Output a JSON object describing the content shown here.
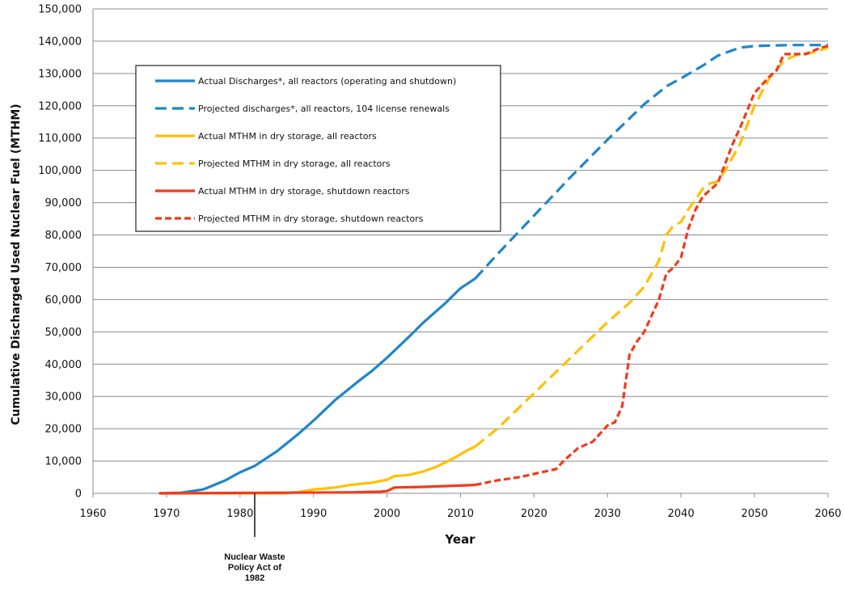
{
  "chart_data": {
    "type": "line",
    "title": "",
    "xlabel": "Year",
    "ylabel": "Cumulative Discharged Used Nuclear Fuel (MTHM)",
    "xlim": [
      1960,
      2060
    ],
    "ylim": [
      0,
      150000
    ],
    "x_ticks": [
      "1960",
      "1970",
      "1980",
      "1990",
      "2000",
      "2010",
      "2020",
      "2030",
      "2040",
      "2050",
      "2060"
    ],
    "y_ticks": [
      "0",
      "10,000",
      "20,000",
      "30,000",
      "40,000",
      "50,000",
      "60,000",
      "70,000",
      "80,000",
      "90,000",
      "100,000",
      "110,000",
      "120,000",
      "130,000",
      "140,000",
      "150,000"
    ],
    "grid": "horizontal",
    "legend_position": "upper-left",
    "annotation": {
      "x": 1982,
      "lines": [
        "Nuclear Waste",
        "Policy Act of",
        "1982"
      ]
    },
    "series": [
      {
        "name": "Actual Discharges*, all reactors (operating and shutdown)",
        "color": "#1f86c8",
        "style": "solid",
        "x": [
          1969,
          1972,
          1975,
          1978,
          1980,
          1982,
          1985,
          1988,
          1990,
          1993,
          1996,
          1998,
          2000,
          2003,
          2005,
          2008,
          2010,
          2012
        ],
        "y": [
          0,
          200,
          1200,
          4000,
          6500,
          8500,
          13000,
          18500,
          22500,
          29000,
          34500,
          38000,
          42000,
          48500,
          53000,
          59000,
          63500,
          66500
        ]
      },
      {
        "name": "Projected discharges*, all reactors, 104 license renewals",
        "color": "#1f86c8",
        "style": "dashed",
        "x": [
          2012,
          2015,
          2020,
          2025,
          2030,
          2035,
          2038,
          2040,
          2043,
          2045,
          2048,
          2050,
          2053,
          2055,
          2060
        ],
        "y": [
          66500,
          74000,
          86000,
          98000,
          109500,
          120500,
          126000,
          128500,
          132500,
          135500,
          138000,
          138500,
          138700,
          138800,
          138800
        ]
      },
      {
        "name": "Actual MTHM in dry storage, all reactors",
        "color": "#ffc000",
        "style": "solid",
        "x": [
          1969,
          1986,
          1988,
          1990,
          1993,
          1995,
          1998,
          2000,
          2001,
          2003,
          2005,
          2007,
          2009,
          2011,
          2012
        ],
        "y": [
          0,
          0,
          400,
          1200,
          1800,
          2600,
          3300,
          4200,
          5300,
          5700,
          6800,
          8500,
          10800,
          13400,
          14500
        ]
      },
      {
        "name": "Projected MTHM in dry storage, all reactors",
        "color": "#ffc000",
        "style": "dashed",
        "x": [
          2012,
          2015,
          2020,
          2025,
          2030,
          2033,
          2035,
          2037,
          2038,
          2039,
          2040,
          2041,
          2042,
          2043,
          2044,
          2045,
          2046,
          2048,
          2050,
          2052,
          2054,
          2056,
          2058,
          2060
        ],
        "y": [
          14500,
          20000,
          31000,
          42000,
          53000,
          59000,
          64000,
          72000,
          80000,
          83000,
          84000,
          88000,
          91000,
          94500,
          96000,
          96500,
          100000,
          108000,
          120000,
          128500,
          134000,
          136000,
          136500,
          138000
        ]
      },
      {
        "name": "Actual MTHM in dry storage, shutdown reactors",
        "color": "#f23a1d",
        "style": "solid",
        "x": [
          1969,
          1995,
          1999,
          2000,
          2001,
          2005,
          2010,
          2012
        ],
        "y": [
          0,
          300,
          500,
          700,
          1800,
          2000,
          2400,
          2600
        ]
      },
      {
        "name": "Projected MTHM in dry storage, shutdown reactors",
        "color": "#f23a1d",
        "style": "dashed",
        "x": [
          2012,
          2015,
          2018,
          2020,
          2023,
          2024,
          2026,
          2028,
          2030,
          2031,
          2032,
          2033,
          2034,
          2035,
          2036,
          2037,
          2038,
          2039,
          2040,
          2041,
          2042,
          2043,
          2044,
          2045,
          2046,
          2047,
          2048,
          2050,
          2052,
          2053,
          2054,
          2055,
          2056,
          2057,
          2058,
          2059,
          2060
        ],
        "y": [
          2600,
          4000,
          5000,
          6000,
          7500,
          10000,
          14000,
          16000,
          21000,
          22000,
          27000,
          43000,
          47000,
          50000,
          55000,
          60000,
          68000,
          70000,
          73000,
          82000,
          88000,
          92000,
          94000,
          96000,
          102000,
          108000,
          113000,
          124000,
          129000,
          131000,
          136000,
          136000,
          136000,
          136000,
          137000,
          138000,
          138500
        ]
      }
    ]
  }
}
